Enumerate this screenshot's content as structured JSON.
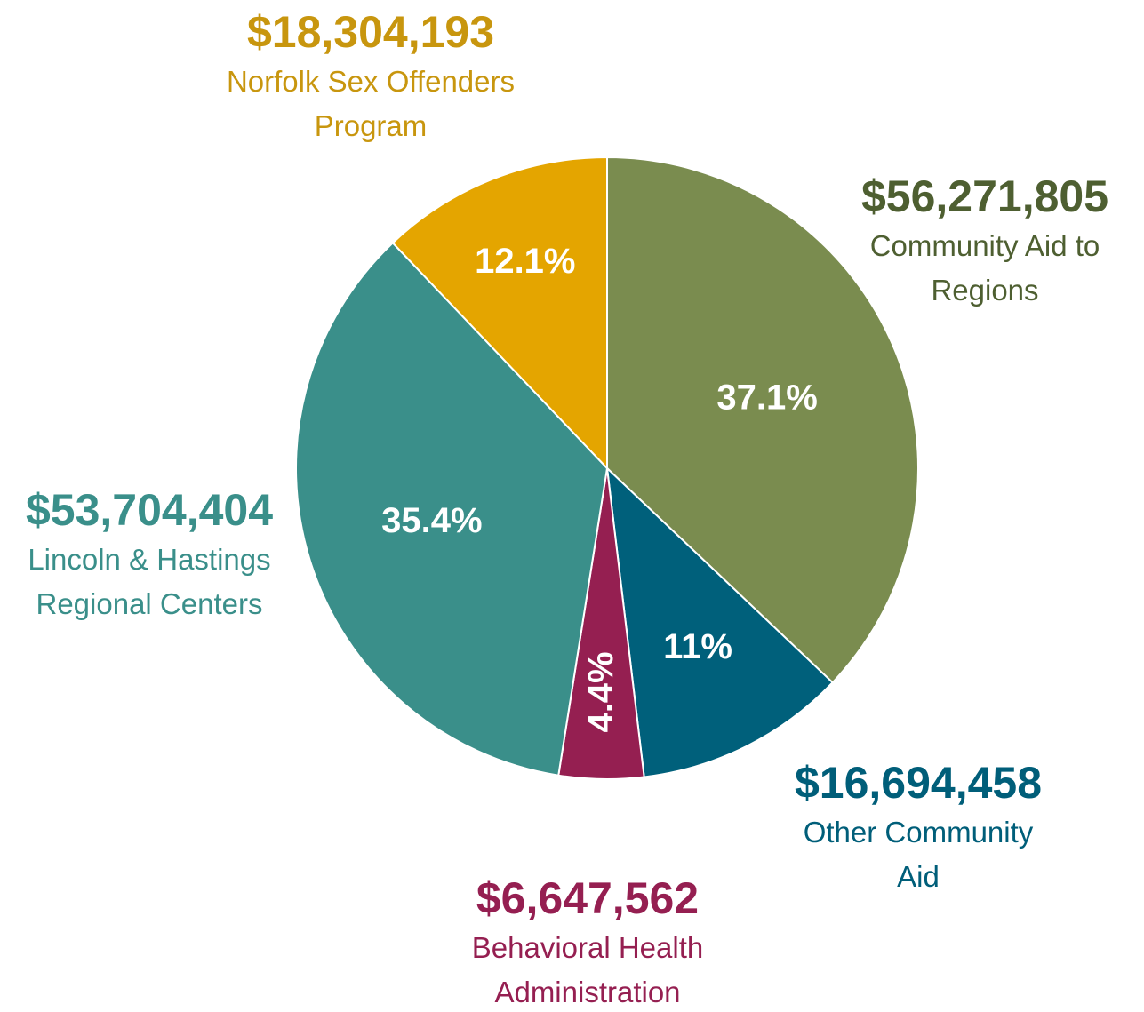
{
  "chart_data": {
    "type": "pie",
    "categories": [
      "Community Aid to Regions",
      "Other Community Aid",
      "Behavioral Health Administration",
      "Lincoln & Hastings Regional Centers",
      "Norfolk Sex Offenders Program"
    ],
    "values": [
      37.1,
      11,
      4.4,
      35.4,
      12.1
    ],
    "value_labels": [
      "37.1%",
      "11%",
      "4.4%",
      "35.4%",
      "12.1%"
    ],
    "amount_labels": [
      "$56,271,805",
      "$16,694,458",
      "$6,647,562",
      "$53,704,404",
      "$18,304,193"
    ],
    "colors": [
      "#7a8c4f",
      "#00607b",
      "#951f51",
      "#3a8f8a",
      "#e4a500"
    ],
    "label_colors": [
      "#4e5f31",
      "#005e79",
      "#951f51",
      "#3a8f8a",
      "#c8960e"
    ]
  }
}
